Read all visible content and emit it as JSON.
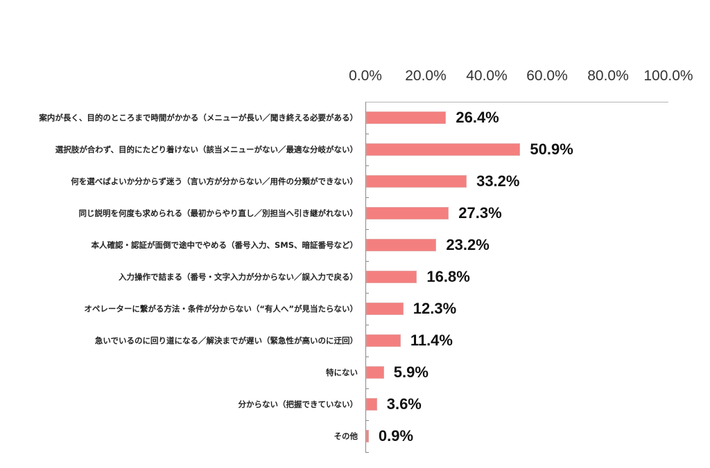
{
  "chart_data": {
    "type": "bar",
    "orientation": "horizontal",
    "title": "",
    "xlabel": "",
    "ylabel": "",
    "xlim": [
      0,
      100
    ],
    "x_ticks": [
      "0.0%",
      "20.0%",
      "40.0%",
      "60.0%",
      "80.0%",
      "100.0%"
    ],
    "x_axis_position": "top",
    "grid": false,
    "legend": null,
    "bar_color": "#f47f7f",
    "categories": [
      "案内が長く、目的のところまで時間がかかる（メニューが長い／聞き終える必要がある）",
      "選択肢が合わず、目的にたどり着けない（該当メニューがない／最適な分岐がない）",
      "何を選べばよいか分からず迷う（言い方が分からない／用件の分類ができない）",
      "同じ説明を何度も求められる（最初からやり直し／別担当へ引き継がれない）",
      "本人確認・認証が面倒で途中でやめる（番号入力、SMS、暗証番号など）",
      "入力操作で詰まる（番号・文字入力が分からない／誤入力で戻る）",
      "オペレーターに繋がる方法・条件が分からない（“有人へ”が見当たらない）",
      "急いでいるのに回り道になる／解決までが遅い（緊急性が高いのに迂回）",
      "特にない",
      "分からない（把握できていない）",
      "その他"
    ],
    "values": [
      26.4,
      50.9,
      33.2,
      27.3,
      23.2,
      16.8,
      12.3,
      11.4,
      5.9,
      3.6,
      0.9
    ],
    "value_labels": [
      "26.4%",
      "50.9%",
      "33.2%",
      "27.3%",
      "23.2%",
      "16.8%",
      "12.3%",
      "11.4%",
      "5.9%",
      "3.6%",
      "0.9%"
    ]
  }
}
